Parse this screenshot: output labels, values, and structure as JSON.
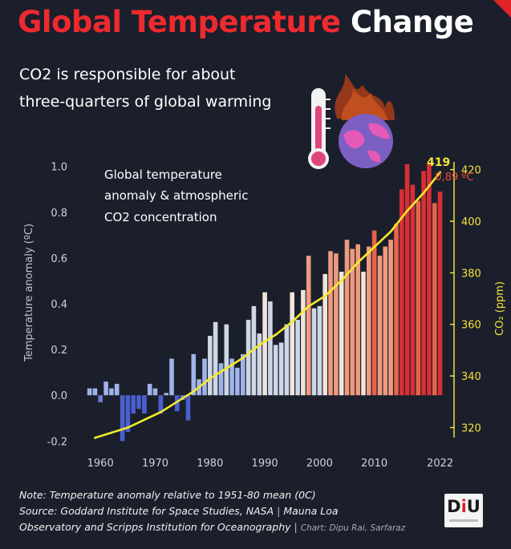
{
  "title": {
    "part1": "Global Temperature",
    "part2": "Change"
  },
  "subtitle": {
    "line1": "CO2 is responsible for about",
    "line2": "three-quarters of global warming"
  },
  "chart_data": {
    "type": "bar+line",
    "annotation": [
      "Global temperature",
      "anomaly & atmospheric",
      "CO2 concentration"
    ],
    "x_ticks": [
      "1960",
      "1970",
      "1980",
      "1990",
      "2000",
      "2010",
      "2022"
    ],
    "y_left": {
      "label": "Temperature anomaly (ºC)",
      "ticks": [
        "1.0",
        "0.8",
        "0.6",
        "0.4",
        "0.2",
        "0.0",
        "-0.2"
      ],
      "range": [
        -0.22,
        1.02
      ]
    },
    "y_right": {
      "label": "CO₂ (ppm)",
      "ticks": [
        "420",
        "400",
        "380",
        "360",
        "340",
        "320"
      ],
      "range": [
        313,
        423
      ]
    },
    "end_labels": {
      "co2": "419",
      "temp": "0,89 ºC"
    },
    "series": [
      {
        "name": "Temperature anomaly",
        "kind": "bar",
        "x": [
          1958,
          1959,
          1960,
          1961,
          1962,
          1963,
          1964,
          1965,
          1966,
          1967,
          1968,
          1969,
          1970,
          1971,
          1972,
          1973,
          1974,
          1975,
          1976,
          1977,
          1978,
          1979,
          1980,
          1981,
          1982,
          1983,
          1984,
          1985,
          1986,
          1987,
          1988,
          1989,
          1990,
          1991,
          1992,
          1993,
          1994,
          1995,
          1996,
          1997,
          1998,
          1999,
          2000,
          2001,
          2002,
          2003,
          2004,
          2005,
          2006,
          2007,
          2008,
          2009,
          2010,
          2011,
          2012,
          2013,
          2014,
          2015,
          2016,
          2017,
          2018,
          2019,
          2020,
          2021,
          2022
        ],
        "values": [
          0.03,
          0.03,
          -0.03,
          0.06,
          0.03,
          0.05,
          -0.2,
          -0.16,
          -0.08,
          -0.06,
          -0.08,
          0.05,
          0.03,
          -0.08,
          0.01,
          0.16,
          -0.07,
          -0.02,
          -0.11,
          0.18,
          0.07,
          0.16,
          0.26,
          0.32,
          0.14,
          0.31,
          0.16,
          0.12,
          0.18,
          0.33,
          0.39,
          0.27,
          0.45,
          0.41,
          0.22,
          0.23,
          0.31,
          0.45,
          0.33,
          0.46,
          0.61,
          0.38,
          0.39,
          0.53,
          0.63,
          0.62,
          0.54,
          0.68,
          0.64,
          0.66,
          0.54,
          0.65,
          0.72,
          0.61,
          0.65,
          0.68,
          0.75,
          0.9,
          1.01,
          0.92,
          0.85,
          0.98,
          1.01,
          0.84,
          0.89
        ]
      },
      {
        "name": "CO2 concentration",
        "kind": "line",
        "x": [
          1959,
          1962,
          1965,
          1968,
          1971,
          1974,
          1977,
          1980,
          1983,
          1986,
          1989,
          1992,
          1995,
          1998,
          2001,
          2004,
          2007,
          2010,
          2013,
          2016,
          2019,
          2022
        ],
        "values": [
          316,
          318,
          320,
          323,
          326,
          330,
          334,
          339,
          343,
          347,
          352,
          356,
          361,
          367,
          371,
          377,
          384,
          390,
          396,
          404,
          411,
          419
        ]
      }
    ]
  },
  "colors": {
    "background": "#1b1f2b",
    "title_red": "#ee2a2f",
    "co2_line": "#f5ea2a",
    "axis_yellow": "#f5e23a"
  },
  "notes": {
    "line1": "Note: Temperature anomaly relative to 1951-80 mean (0C)",
    "line2a": "Source: Goddard Institute for Space Studies, NASA",
    "sep": "|",
    "line2b": "Mauna Loa",
    "line3": "Observatory and Scripps Institution for Oceanography",
    "sep2": "|",
    "credit": "Chart: Dipu Rai, Sarfaraz"
  },
  "logo": {
    "text_d": "D",
    "text_i": "i",
    "text_u": "U"
  },
  "icons": [
    "thermometer-icon",
    "burning-globe-icon"
  ]
}
